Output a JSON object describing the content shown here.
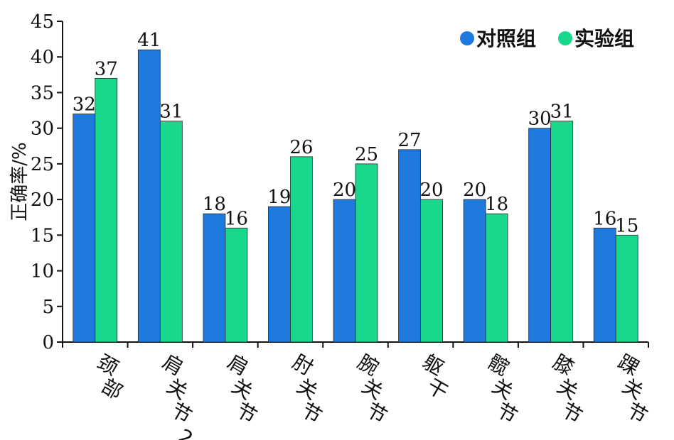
{
  "chart_data": {
    "type": "bar",
    "ylabel": "正确率/%",
    "ylim": [
      0,
      45
    ],
    "yticks": [
      0,
      5,
      10,
      15,
      20,
      25,
      30,
      35,
      40,
      45
    ],
    "categories": [
      "颈部",
      "肩关节2",
      "肩关节",
      "肘关节",
      "腕关节",
      "躯干",
      "髋关节",
      "膝关节",
      "踝关节"
    ],
    "series": [
      {
        "name": "对照组",
        "color": "#1f7ae0",
        "values": [
          32,
          41,
          18,
          19,
          20,
          27,
          20,
          30,
          16
        ]
      },
      {
        "name": "实验组",
        "color": "#18d88b",
        "values": [
          37,
          31,
          16,
          26,
          25,
          20,
          18,
          31,
          15
        ]
      }
    ],
    "legend_position": "top-right",
    "grid": false
  }
}
